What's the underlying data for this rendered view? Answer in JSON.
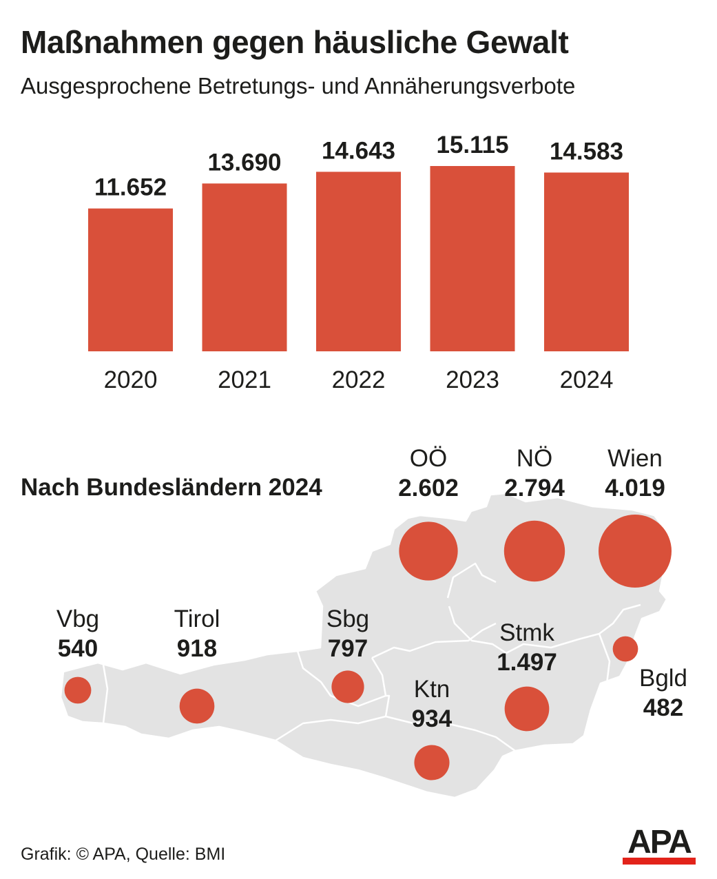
{
  "title": "Maßnahmen gegen häusliche Gewalt",
  "subtitle": "Ausgesprochene Betretungs- und Annäherungsverbote",
  "colors": {
    "bar": "#d9503a",
    "map": "#e3e3e3",
    "text": "#1d1d1b",
    "logo_accent": "#e2231a"
  },
  "chart_data": {
    "type": "bar",
    "title": "Maßnahmen gegen häusliche Gewalt",
    "subtitle": "Ausgesprochene Betretungs- und Annäherungsverbote",
    "categories": [
      "2020",
      "2021",
      "2022",
      "2023",
      "2024"
    ],
    "values": [
      11652,
      13690,
      14643,
      15115,
      14583
    ],
    "value_labels": [
      "11.652",
      "13.690",
      "14.643",
      "15.115",
      "14.583"
    ],
    "ylim": [
      0,
      15115
    ],
    "xlabel": "",
    "ylabel": "",
    "grid": false
  },
  "map_section": {
    "title": "Nach Bundesländern 2024",
    "regions": [
      {
        "name": "OÖ",
        "value": 2602,
        "label": "2.602"
      },
      {
        "name": "NÖ",
        "value": 2794,
        "label": "2.794"
      },
      {
        "name": "Wien",
        "value": 4019,
        "label": "4.019"
      },
      {
        "name": "Vbg",
        "value": 540,
        "label": "540"
      },
      {
        "name": "Tirol",
        "value": 918,
        "label": "918"
      },
      {
        "name": "Sbg",
        "value": 797,
        "label": "797"
      },
      {
        "name": "Stmk",
        "value": 1497,
        "label": "1.497"
      },
      {
        "name": "Ktn",
        "value": 934,
        "label": "934"
      },
      {
        "name": "Bgld",
        "value": 482,
        "label": "482"
      }
    ]
  },
  "footer": {
    "credit": "Grafik: © APA, Quelle: BMI",
    "logo_text": "APA"
  }
}
